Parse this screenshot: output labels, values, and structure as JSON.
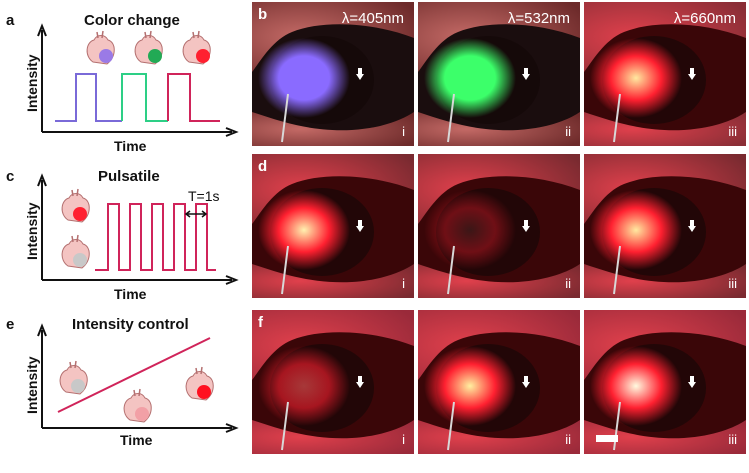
{
  "panel_a": {
    "letter": "a",
    "title": "Color change",
    "xlabel": "Time",
    "ylabel": "Intensity"
  },
  "panel_c": {
    "letter": "c",
    "title": "Pulsatile",
    "xlabel": "Time",
    "ylabel": "Intensity",
    "period_label": "T=1s"
  },
  "panel_e": {
    "letter": "e",
    "title": "Intensity control",
    "xlabel": "Time",
    "ylabel": "Intensity"
  },
  "rows": [
    {
      "letter": "b",
      "photos": [
        {
          "wavelength": "λ=405nm",
          "roman": "i",
          "glow": "#8a6bff"
        },
        {
          "wavelength": "λ=532nm",
          "roman": "ii",
          "glow": "#3cff6a"
        },
        {
          "wavelength": "λ=660nm",
          "roman": "iii",
          "glow": "#ffe9a0"
        }
      ]
    },
    {
      "letter": "d",
      "photos": [
        {
          "roman": "i",
          "glow": "#fff2b0"
        },
        {
          "roman": "ii",
          "glow": "#6a3434"
        },
        {
          "roman": "iii",
          "glow": "#ffe9a0"
        }
      ]
    },
    {
      "letter": "f",
      "photos": [
        {
          "roman": "i",
          "glow": "#ff5a5a"
        },
        {
          "roman": "ii",
          "glow": "#fff0a0"
        },
        {
          "roman": "iii",
          "glow": "#fffbe0"
        }
      ]
    }
  ],
  "colors": {
    "violet": "#7a6ad8",
    "green": "#2dcf86",
    "magenta": "#d0245a",
    "red_light": "#ff2030"
  }
}
